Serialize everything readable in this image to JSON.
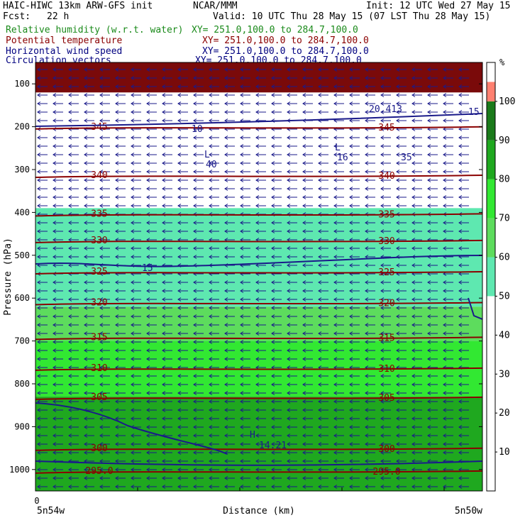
{
  "header": {
    "title": "HAIC-HIWC 13km ARW-GFS init",
    "org": "NCAR/MMM",
    "init": "Init: 12 UTC Wed 27 May 15",
    "fcst_label": "Fcst:",
    "fcst_value": "22 h",
    "valid": "Valid: 10 UTC Thu 28 May 15 (07 LST Thu 28 May 15)",
    "fields": [
      {
        "name": "Relative humidity (w.r.t. water)",
        "xy": "XY= 251.0,100.0 to 284.7,100.0",
        "color": "#1a8a1a"
      },
      {
        "name": "Potential temperature",
        "xy": "XY= 251.0,100.0 to 284.7,100.0",
        "color": "#8b0000"
      },
      {
        "name": "Horizontal wind speed",
        "xy": "XY= 251.0,100.0 to 284.7,100.0",
        "color": "#000080"
      },
      {
        "name": "Circulation vectors",
        "xy": "XY= 251.0,100.0 to 284.7,100.0",
        "color": "#000080"
      }
    ]
  },
  "chart_data": {
    "type": "heatmap",
    "ylabel": "Pressure (hPa)",
    "xlabel": "Distance (km)",
    "x_tick_label": "0",
    "x_left_label": "5n54w",
    "x_right_label": "5n50w",
    "y_ticks": [
      100,
      200,
      300,
      400,
      500,
      600,
      700,
      800,
      900,
      1000
    ],
    "y_range": [
      50,
      1050
    ],
    "colorbar": {
      "unit": "%",
      "ticks": [
        10,
        20,
        30,
        40,
        50,
        60,
        70,
        80,
        90,
        100
      ],
      "bands": [
        {
          "from": 0,
          "to": 50,
          "color": "#ffffff"
        },
        {
          "from": 50,
          "to": 60,
          "color": "#5ee8b0"
        },
        {
          "from": 60,
          "to": 70,
          "color": "#5ddc5d"
        },
        {
          "from": 70,
          "to": 80,
          "color": "#32e832"
        },
        {
          "from": 80,
          "to": 90,
          "color": "#1fa81f"
        },
        {
          "from": 90,
          "to": 100,
          "color": "#1a7a1a"
        },
        {
          "from": 100,
          "to": 105,
          "color": "#ff8070"
        }
      ]
    },
    "rh_layers": [
      {
        "top": 50,
        "bottom": 200,
        "value": 0
      },
      {
        "top": 200,
        "bottom": 390,
        "value": 45
      },
      {
        "top": 390,
        "bottom": 470,
        "value": 55
      },
      {
        "top": 470,
        "bottom": 620,
        "value": 58
      },
      {
        "top": 620,
        "bottom": 700,
        "value": 65
      },
      {
        "top": 700,
        "bottom": 830,
        "value": 75
      },
      {
        "top": 830,
        "bottom": 1050,
        "value": 85
      }
    ],
    "theta_contours": [
      {
        "p": 202,
        "label": "345"
      },
      {
        "p": 315,
        "label": "340"
      },
      {
        "p": 405,
        "label": "335"
      },
      {
        "p": 467,
        "label": "330"
      },
      {
        "p": 540,
        "label": "325"
      },
      {
        "p": 612,
        "label": "320"
      },
      {
        "p": 693,
        "label": "315"
      },
      {
        "p": 765,
        "label": "310"
      },
      {
        "p": 833,
        "label": "305"
      },
      {
        "p": 952,
        "label": "300"
      },
      {
        "p": 1005,
        "label": "295.0"
      }
    ],
    "speed_labels": [
      "10",
      "15",
      "20.413",
      "40",
      "16",
      "35",
      "15",
      "14.21"
    ],
    "markers": [
      {
        "symbol": "L",
        "value": "40"
      },
      {
        "symbol": "L",
        "value": "16"
      },
      {
        "symbol": "H",
        "value": "14.21"
      }
    ]
  }
}
